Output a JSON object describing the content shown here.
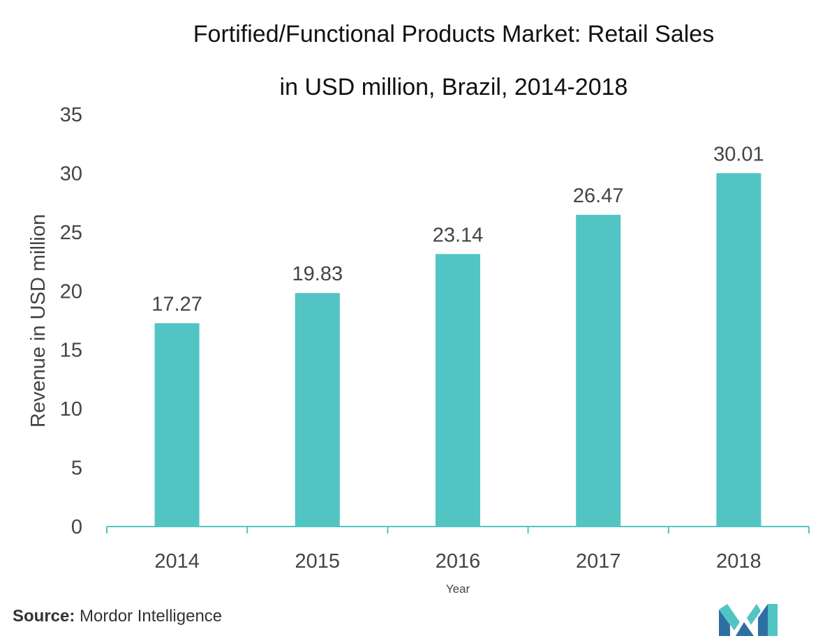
{
  "chart_data": {
    "type": "bar",
    "title_lines": [
      "Fortified/Functional Products Market: Retail Sales",
      "in USD million, Brazil, 2014-2018"
    ],
    "categories": [
      "2014",
      "2015",
      "2016",
      "2017",
      "2018"
    ],
    "values": [
      17.27,
      19.83,
      23.14,
      26.47,
      30.01
    ],
    "value_labels": [
      "17.27",
      "19.83",
      "23.14",
      "26.47",
      "30.01"
    ],
    "xlabel": "Year",
    "ylabel": "Revenue in USD million",
    "ylim": [
      0,
      35
    ],
    "yticks": [
      0,
      5,
      10,
      15,
      20,
      25,
      30,
      35
    ],
    "grid": false,
    "legend": "none",
    "bar_color": "#52C4C4"
  },
  "footer": {
    "source_label": "Source:",
    "source_text": " Mordor Intelligence",
    "logo_icon": "mordor-intelligence-logo-icon",
    "logo_colors": [
      "#2E6FA3",
      "#52C4C4"
    ]
  }
}
